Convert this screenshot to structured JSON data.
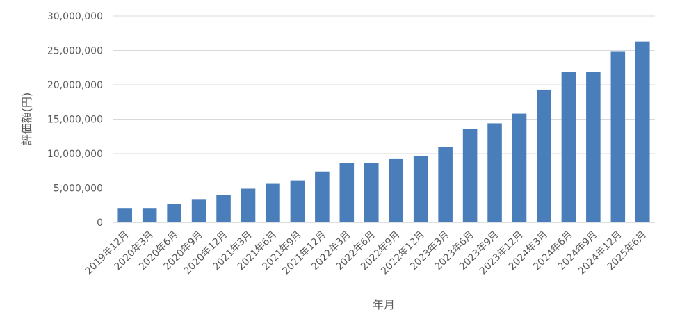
{
  "chart_data": {
    "type": "bar",
    "xlabel": "年月",
    "ylabel": "評価額(円)",
    "ylim": [
      0,
      30000000
    ],
    "y_ticks": [
      0,
      5000000,
      10000000,
      15000000,
      20000000,
      25000000,
      30000000
    ],
    "y_tick_labels": [
      "0",
      "5,000,000",
      "10,000,000",
      "15,000,000",
      "20,000,000",
      "25,000,000",
      "30,000,000"
    ],
    "grid": true,
    "legend": "none",
    "bar_color": "#4a7ebb",
    "categories": [
      "2019年12月",
      "2020年3月",
      "2020年6月",
      "2020年9月",
      "2020年12月",
      "2021年3月",
      "2021年6月",
      "2021年9月",
      "2021年12月",
      "2022年3月",
      "2022年6月",
      "2022年9月",
      "2022年12月",
      "2023年3月",
      "2023年6月",
      "2023年9月",
      "2023年12月",
      "2024年3月",
      "2024年6月",
      "2024年9月",
      "2024年12月",
      "2025年6月"
    ],
    "values": [
      2000000,
      2000000,
      2700000,
      3300000,
      4000000,
      4900000,
      5600000,
      6100000,
      7400000,
      8600000,
      8600000,
      9200000,
      9700000,
      11000000,
      13600000,
      14400000,
      15800000,
      19300000,
      21900000,
      21900000,
      24800000,
      26300000
    ]
  }
}
